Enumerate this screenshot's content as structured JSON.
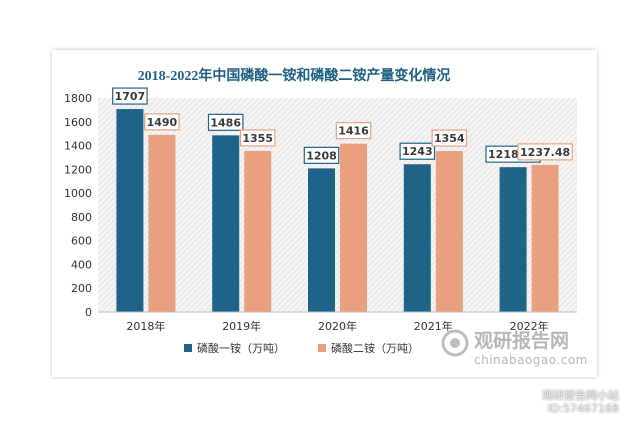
{
  "chart_data": {
    "type": "bar",
    "title": "2018-2022年中国磷酸一铵和磷酸二铵产量变化情况",
    "categories": [
      "2018年",
      "2019年",
      "2020年",
      "2021年",
      "2022年"
    ],
    "series": [
      {
        "name": "磷酸一铵（万吨）",
        "values": [
          1707,
          1486,
          1208,
          1243,
          1218.3
        ],
        "labels": [
          "1707",
          "1486",
          "1208",
          "1243",
          "1218.30"
        ],
        "color": "#1f6389"
      },
      {
        "name": "磷酸二铵（万吨）",
        "values": [
          1490,
          1355,
          1416,
          1354,
          1237.48
        ],
        "labels": [
          "1490",
          "1355",
          "1416",
          "1354",
          "1237.48"
        ],
        "color": "#e9a07f"
      }
    ],
    "ylim": [
      0,
      1800
    ],
    "yticks": [
      0,
      200,
      400,
      600,
      800,
      1000,
      1200,
      1400,
      1600,
      1800
    ],
    "grid": false,
    "legend": "bottom",
    "plot_background": "hatched"
  },
  "watermark": {
    "brand": "观研报告网",
    "url": "chinabaogao.com",
    "footer_line1": "观研报告网小站",
    "footer_line2": "ID:57467168"
  }
}
